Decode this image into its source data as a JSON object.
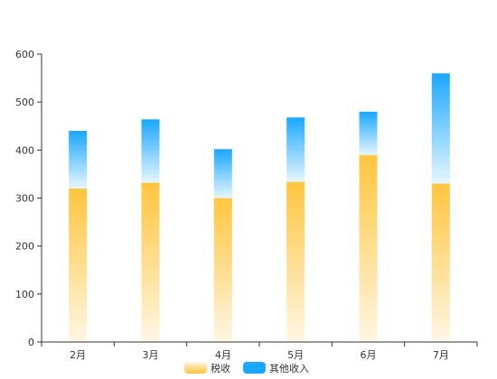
{
  "chart_data": {
    "type": "bar",
    "stacked": true,
    "categories": [
      "2月",
      "3月",
      "4月",
      "5月",
      "6月",
      "7月"
    ],
    "series": [
      {
        "name": "税收",
        "values": [
          320,
          332,
          300,
          334,
          390,
          330
        ]
      },
      {
        "name": "其他收入",
        "values": [
          120,
          132,
          102,
          134,
          90,
          230
        ]
      }
    ],
    "ylim": [
      0,
      600
    ],
    "yticks": [
      0,
      100,
      200,
      300,
      400,
      500,
      600
    ],
    "grid": false,
    "legend": "bottom-center",
    "colors": {
      "tax_top": "#FFC53D",
      "tax_bottom": "#FFF6E4",
      "other_top": "#1AA7FF",
      "other_bottom": "#E6F6FF",
      "axis": "#333333"
    }
  }
}
